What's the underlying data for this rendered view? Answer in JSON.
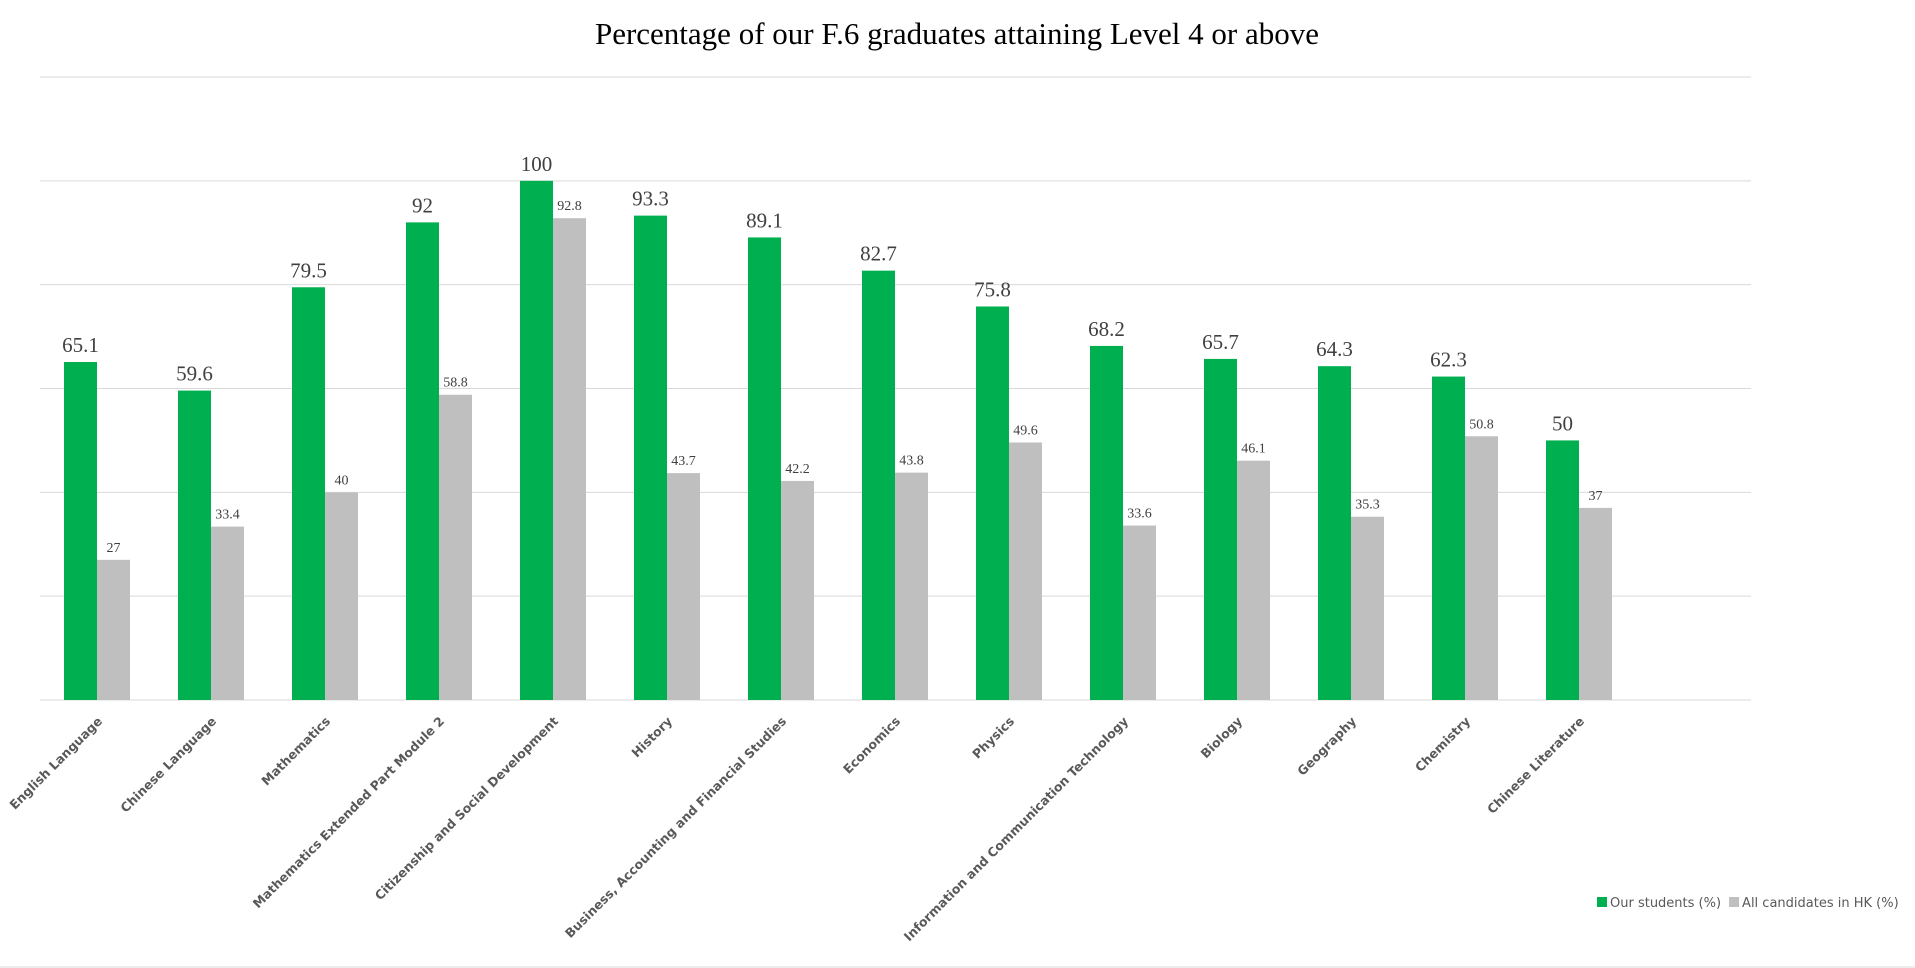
{
  "chart_data": {
    "type": "bar",
    "title": "Percentage of our F.6 graduates attaining Level 4 or above",
    "xlabel": "",
    "ylabel": "",
    "ylim": [
      0,
      120
    ],
    "grid": true,
    "legend_position": "bottom-right",
    "categories": [
      "English Language",
      "Chinese Language",
      "Mathematics",
      "Mathematics Extended Part Module 2",
      "Citizenship and Social Development",
      "History",
      "Business, Accounting and Financial Studies",
      "Economics",
      "Physics",
      "Information and Communication Technology",
      "Biology",
      "Geography",
      "Chemistry",
      "Chinese Literature"
    ],
    "series": [
      {
        "name": "Our students (%)",
        "color": "#00B050",
        "values": [
          65.1,
          59.6,
          79.5,
          92,
          100,
          93.3,
          89.1,
          82.7,
          75.8,
          68.2,
          65.7,
          64.3,
          62.3,
          50
        ]
      },
      {
        "name": "All candidates in HK (%)",
        "color": "#BFBFBF",
        "values": [
          27,
          33.4,
          40,
          58.8,
          92.8,
          43.7,
          42.2,
          43.8,
          49.6,
          33.6,
          46.1,
          35.3,
          50.8,
          37
        ]
      }
    ]
  }
}
